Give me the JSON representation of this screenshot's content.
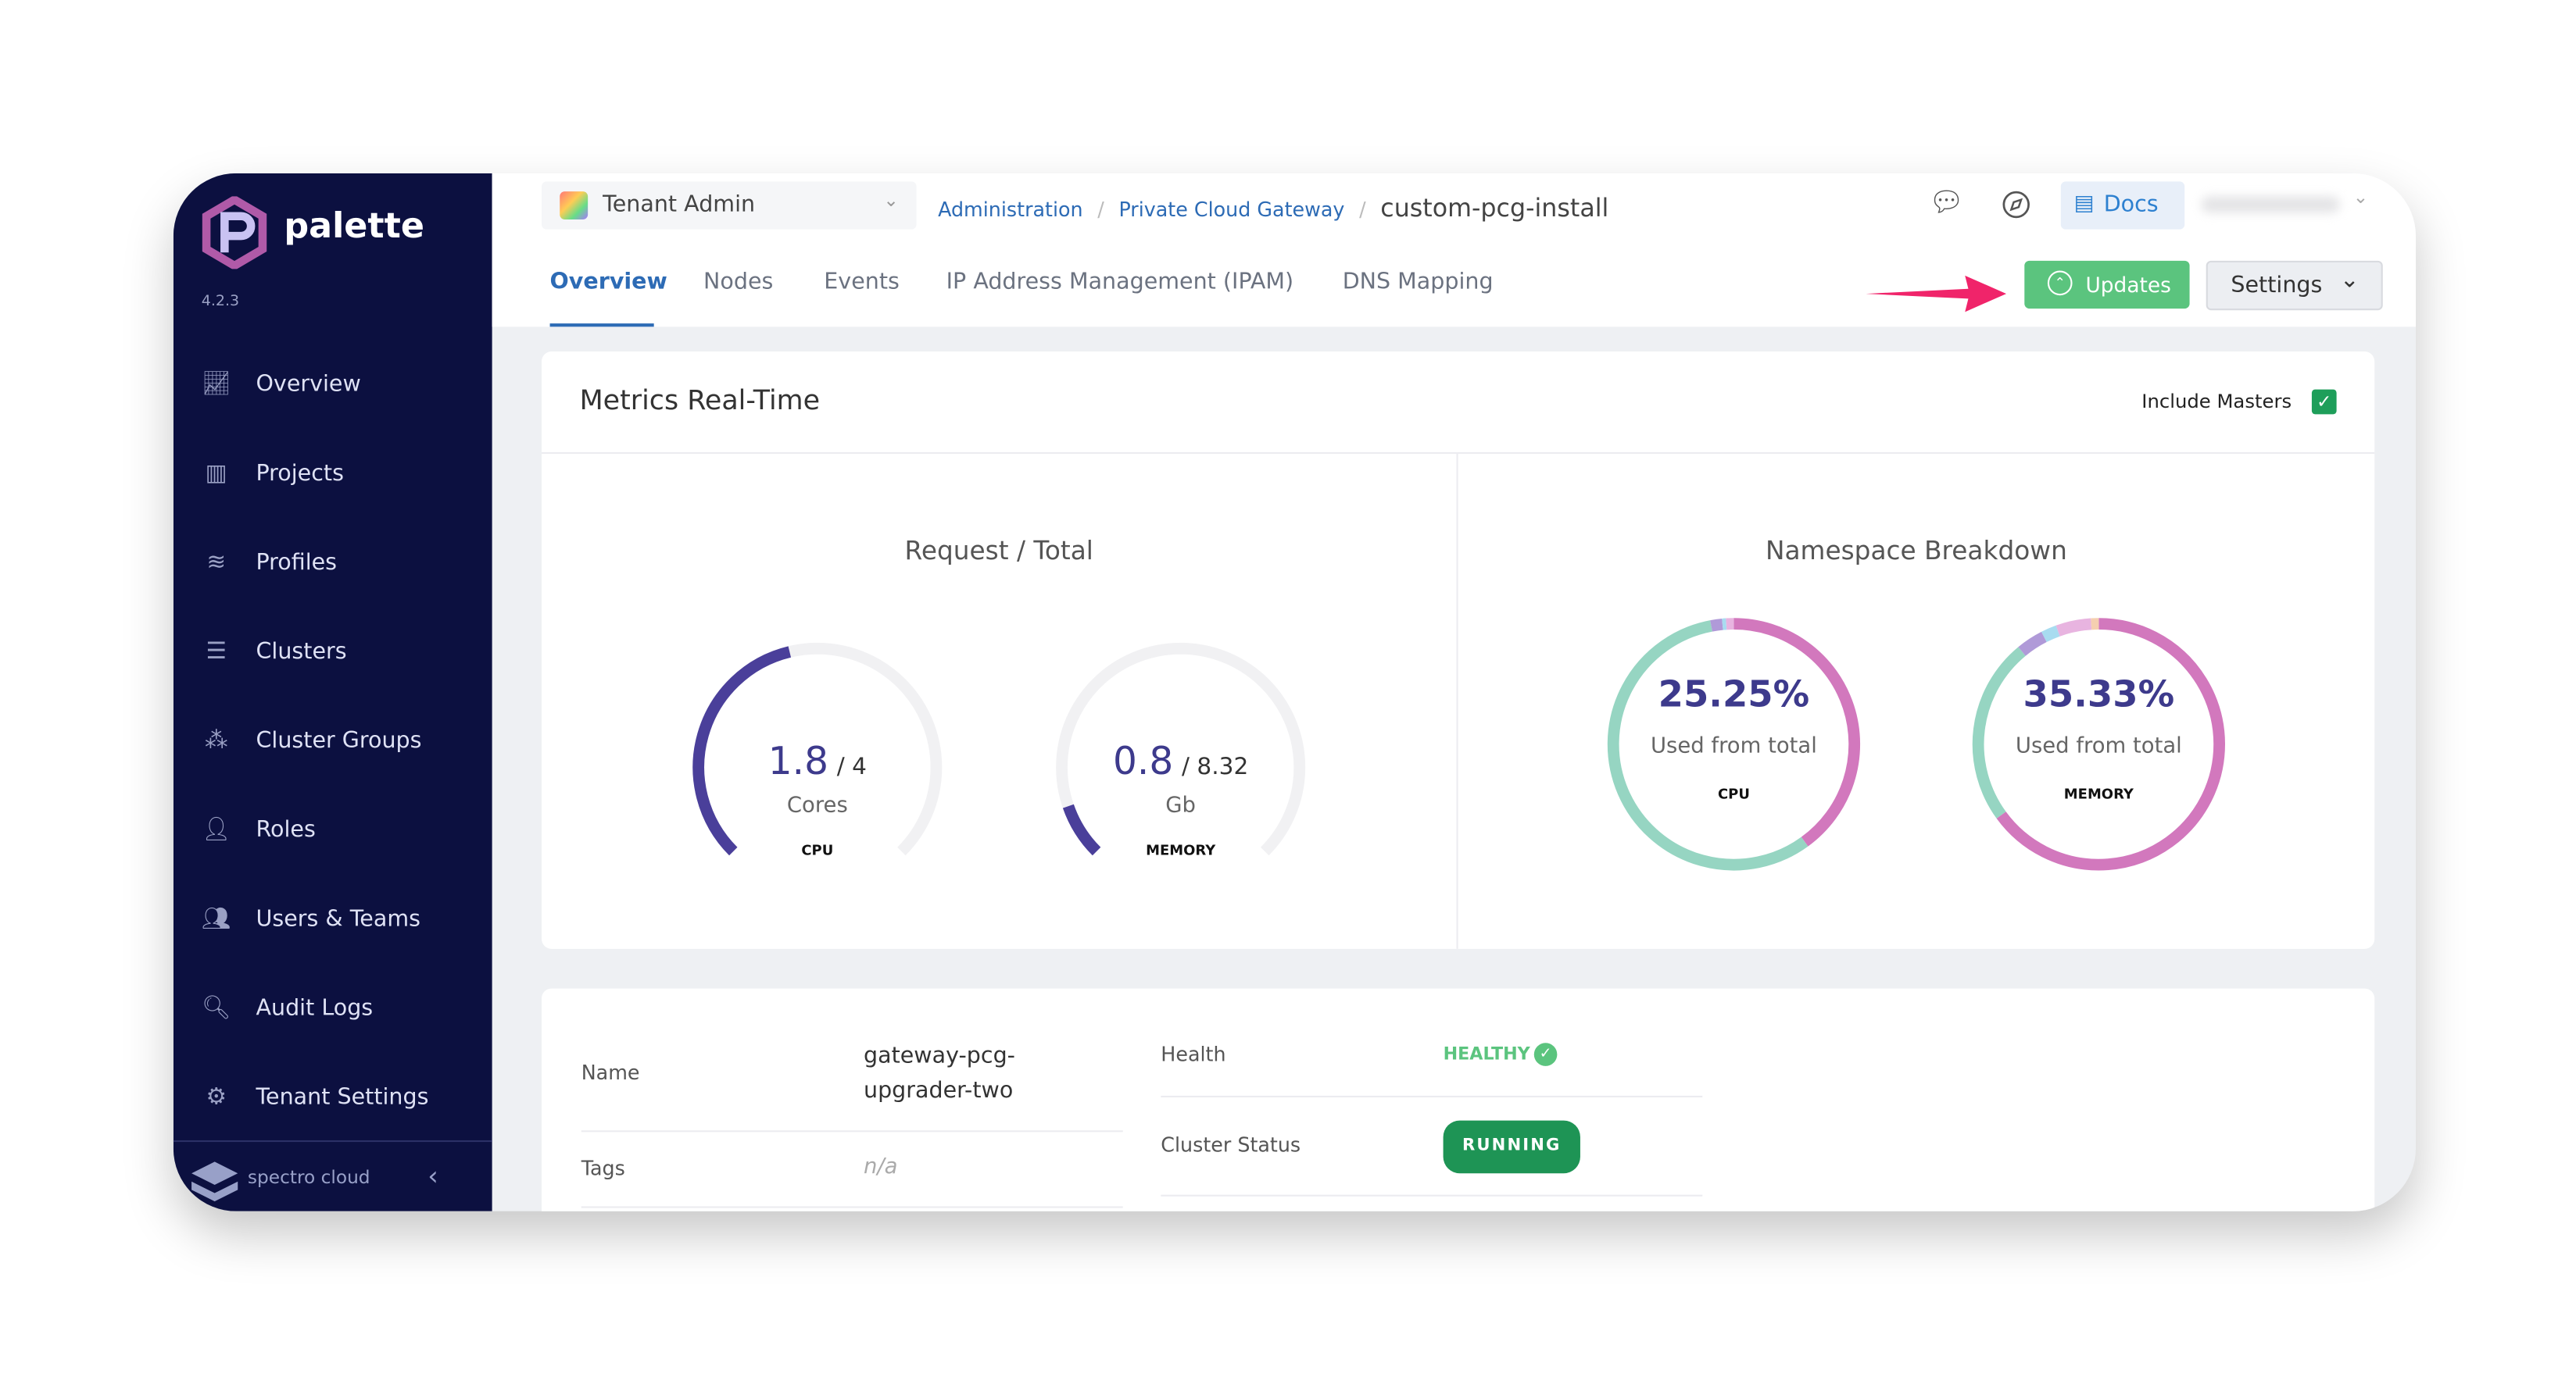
{
  "app": {
    "name": "palette",
    "version": "4.2.3",
    "footer_brand": "spectro cloud"
  },
  "sidebar": {
    "items": [
      {
        "label": "Overview",
        "icon": "chart-icon"
      },
      {
        "label": "Projects",
        "icon": "bar-chart-icon"
      },
      {
        "label": "Profiles",
        "icon": "database-icon"
      },
      {
        "label": "Clusters",
        "icon": "list-icon"
      },
      {
        "label": "Cluster Groups",
        "icon": "network-icon"
      },
      {
        "label": "Roles",
        "icon": "user-lock-icon"
      },
      {
        "label": "Users & Teams",
        "icon": "users-icon"
      },
      {
        "label": "Audit Logs",
        "icon": "search-doc-icon"
      },
      {
        "label": "Tenant Settings",
        "icon": "gear-icon"
      }
    ]
  },
  "header": {
    "scope": "Tenant Admin",
    "breadcrumb": [
      "Administration",
      "Private Cloud Gateway"
    ],
    "current": "custom-pcg-install",
    "docs": "Docs"
  },
  "tabs": [
    {
      "label": "Overview",
      "active": true
    },
    {
      "label": "Nodes"
    },
    {
      "label": "Events"
    },
    {
      "label": "IP Address Management (IPAM)"
    },
    {
      "label": "DNS Mapping"
    }
  ],
  "actions": {
    "updates": "Updates",
    "settings": "Settings"
  },
  "metrics": {
    "title": "Metrics Real-Time",
    "include_masters": "Include Masters",
    "include_masters_checked": true,
    "request_title": "Request / Total",
    "gauges": [
      {
        "value": "1.8",
        "total": "/ 4",
        "unit": "Cores",
        "label": "CPU",
        "fraction": 0.45
      },
      {
        "value": "0.8",
        "total": "/ 8.32",
        "unit": "Gb",
        "label": "MEMORY",
        "fraction": 0.096
      }
    ],
    "namespace_title": "Namespace Breakdown",
    "donuts": [
      {
        "percent": "25.25%",
        "sub": "Used from total",
        "label": "CPU",
        "segments": [
          {
            "color": "#d278bd",
            "fraction": 0.4
          },
          {
            "color": "#96d5c2",
            "fraction": 0.57
          },
          {
            "color": "#b09ad8",
            "fraction": 0.015
          },
          {
            "color": "#a8dcf0",
            "fraction": 0.005
          },
          {
            "color": "#e8b4e0",
            "fraction": 0.01
          }
        ]
      },
      {
        "percent": "35.33%",
        "sub": "Used from total",
        "label": "MEMORY",
        "segments": [
          {
            "color": "#d278bd",
            "fraction": 0.65
          },
          {
            "color": "#96d5c2",
            "fraction": 0.24
          },
          {
            "color": "#b09ad8",
            "fraction": 0.035
          },
          {
            "color": "#a8dcf0",
            "fraction": 0.02
          },
          {
            "color": "#e8b4e0",
            "fraction": 0.045
          },
          {
            "color": "#f5cfb0",
            "fraction": 0.01
          }
        ]
      }
    ]
  },
  "details": {
    "name_label": "Name",
    "name_value": "gateway-pcg-upgrader-two",
    "tags_label": "Tags",
    "tags_value": "n/a",
    "health_label": "Health",
    "health_value": "HEALTHY",
    "status_label": "Cluster Status",
    "status_value": "RUNNING"
  },
  "colors": {
    "sidebar": "#0c1040",
    "accent": "#2d6bb5",
    "updates": "#5bc47e",
    "running": "#1e9455",
    "gauge": "#4a3f9a",
    "arrow": "#f0246a"
  }
}
